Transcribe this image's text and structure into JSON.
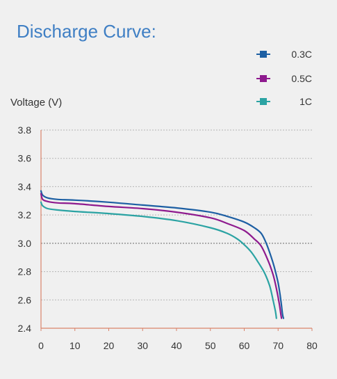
{
  "chart_data": {
    "type": "line",
    "title": "Discharge Curve:",
    "ylabel": "Voltage (V)",
    "xlabel": "",
    "xlim": [
      0,
      80
    ],
    "ylim": [
      2.4,
      3.8
    ],
    "x_ticks": [
      0,
      10,
      20,
      30,
      40,
      50,
      60,
      70,
      80
    ],
    "y_ticks": [
      "2.4",
      "2.6",
      "2.8",
      "3.0",
      "3.2",
      "3.4",
      "3.6",
      "3.8"
    ],
    "grid": "horizontal dashed",
    "legend_position": "top-right",
    "series": [
      {
        "name": "0.3C",
        "color": "#1d5fa3",
        "points": [
          [
            0,
            3.37
          ],
          [
            0.5,
            3.34
          ],
          [
            2,
            3.32
          ],
          [
            5,
            3.31
          ],
          [
            10,
            3.305
          ],
          [
            20,
            3.29
          ],
          [
            30,
            3.27
          ],
          [
            40,
            3.25
          ],
          [
            50,
            3.22
          ],
          [
            55,
            3.19
          ],
          [
            60,
            3.15
          ],
          [
            63,
            3.11
          ],
          [
            65,
            3.07
          ],
          [
            66.5,
            3.0
          ],
          [
            68,
            2.9
          ],
          [
            69,
            2.82
          ],
          [
            70,
            2.72
          ],
          [
            70.8,
            2.6
          ],
          [
            71.3,
            2.5
          ],
          [
            71.6,
            2.47
          ]
        ]
      },
      {
        "name": "0.5C",
        "color": "#8e1a8e",
        "points": [
          [
            0,
            3.35
          ],
          [
            0.5,
            3.31
          ],
          [
            2,
            3.295
          ],
          [
            5,
            3.285
          ],
          [
            10,
            3.28
          ],
          [
            20,
            3.26
          ],
          [
            30,
            3.245
          ],
          [
            40,
            3.22
          ],
          [
            50,
            3.18
          ],
          [
            55,
            3.14
          ],
          [
            60,
            3.09
          ],
          [
            63,
            3.03
          ],
          [
            65,
            2.98
          ],
          [
            67,
            2.88
          ],
          [
            68.5,
            2.78
          ],
          [
            69.5,
            2.68
          ],
          [
            70.3,
            2.58
          ],
          [
            70.8,
            2.5
          ],
          [
            71.0,
            2.47
          ]
        ]
      },
      {
        "name": "1C",
        "color": "#2ba3a3",
        "points": [
          [
            0,
            3.29
          ],
          [
            0.5,
            3.265
          ],
          [
            2,
            3.245
          ],
          [
            5,
            3.235
          ],
          [
            10,
            3.225
          ],
          [
            20,
            3.21
          ],
          [
            30,
            3.19
          ],
          [
            40,
            3.16
          ],
          [
            50,
            3.11
          ],
          [
            55,
            3.07
          ],
          [
            58,
            3.03
          ],
          [
            60,
            2.99
          ],
          [
            62,
            2.94
          ],
          [
            64,
            2.87
          ],
          [
            66,
            2.79
          ],
          [
            67.5,
            2.7
          ],
          [
            68.5,
            2.6
          ],
          [
            69.2,
            2.52
          ],
          [
            69.5,
            2.47
          ]
        ]
      }
    ]
  }
}
